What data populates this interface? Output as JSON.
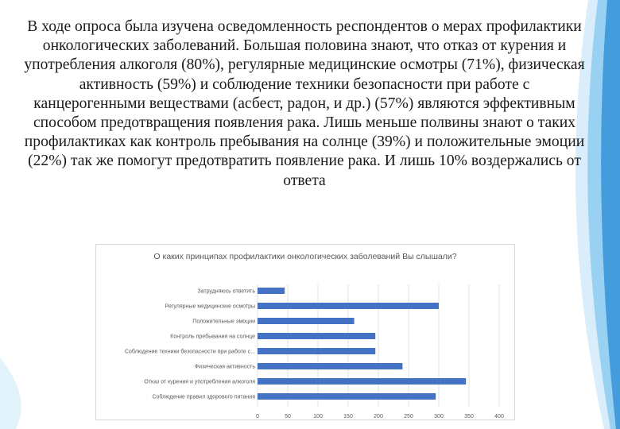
{
  "slide": {
    "paragraph": "В ходе опроса была изучена осведомленность респондентов о мерах профилактики онкологических заболеваний. Большая половина знают, что отказ от курения и употребления алкоголя (80%), регулярные медицинские осмотры (71%), физическая активность (59%) и соблюдение техники безопасности при работе с канцерогенными веществами (асбест, радон, и др.) (57%) являются эффективным способом предотвращения появления рака. Лишь меньше полвины знают о таких профилактиках как контроль пребывания на солнце (39%) и положительные эмоции (22%) так же помогут предотвратить появление рака. И лишь 10% воздержались от ответа"
  },
  "colors": {
    "bar": "#4472c4",
    "accent": "#5aa9e6"
  },
  "chart_data": {
    "type": "bar",
    "orientation": "horizontal",
    "title": "О каких принципах профилактики онкологических заболеваний Вы слышали?",
    "categories": [
      "Затрудняюсь ответить",
      "Регулярные медицинские осмотры",
      "Положительные эмоции",
      "Контроль пребывания на солнце",
      "Соблюдение техники безопасности при работе с...",
      "Физическая активность",
      "Отказ от курения и употребления алкоголя",
      "Соблюдение правил здорового питания"
    ],
    "values": [
      45,
      300,
      160,
      195,
      195,
      240,
      345,
      295
    ],
    "xlim": [
      0,
      400
    ],
    "xticks": [
      0,
      50,
      100,
      150,
      200,
      250,
      300,
      350,
      400
    ],
    "grid": true,
    "legend": "none"
  }
}
